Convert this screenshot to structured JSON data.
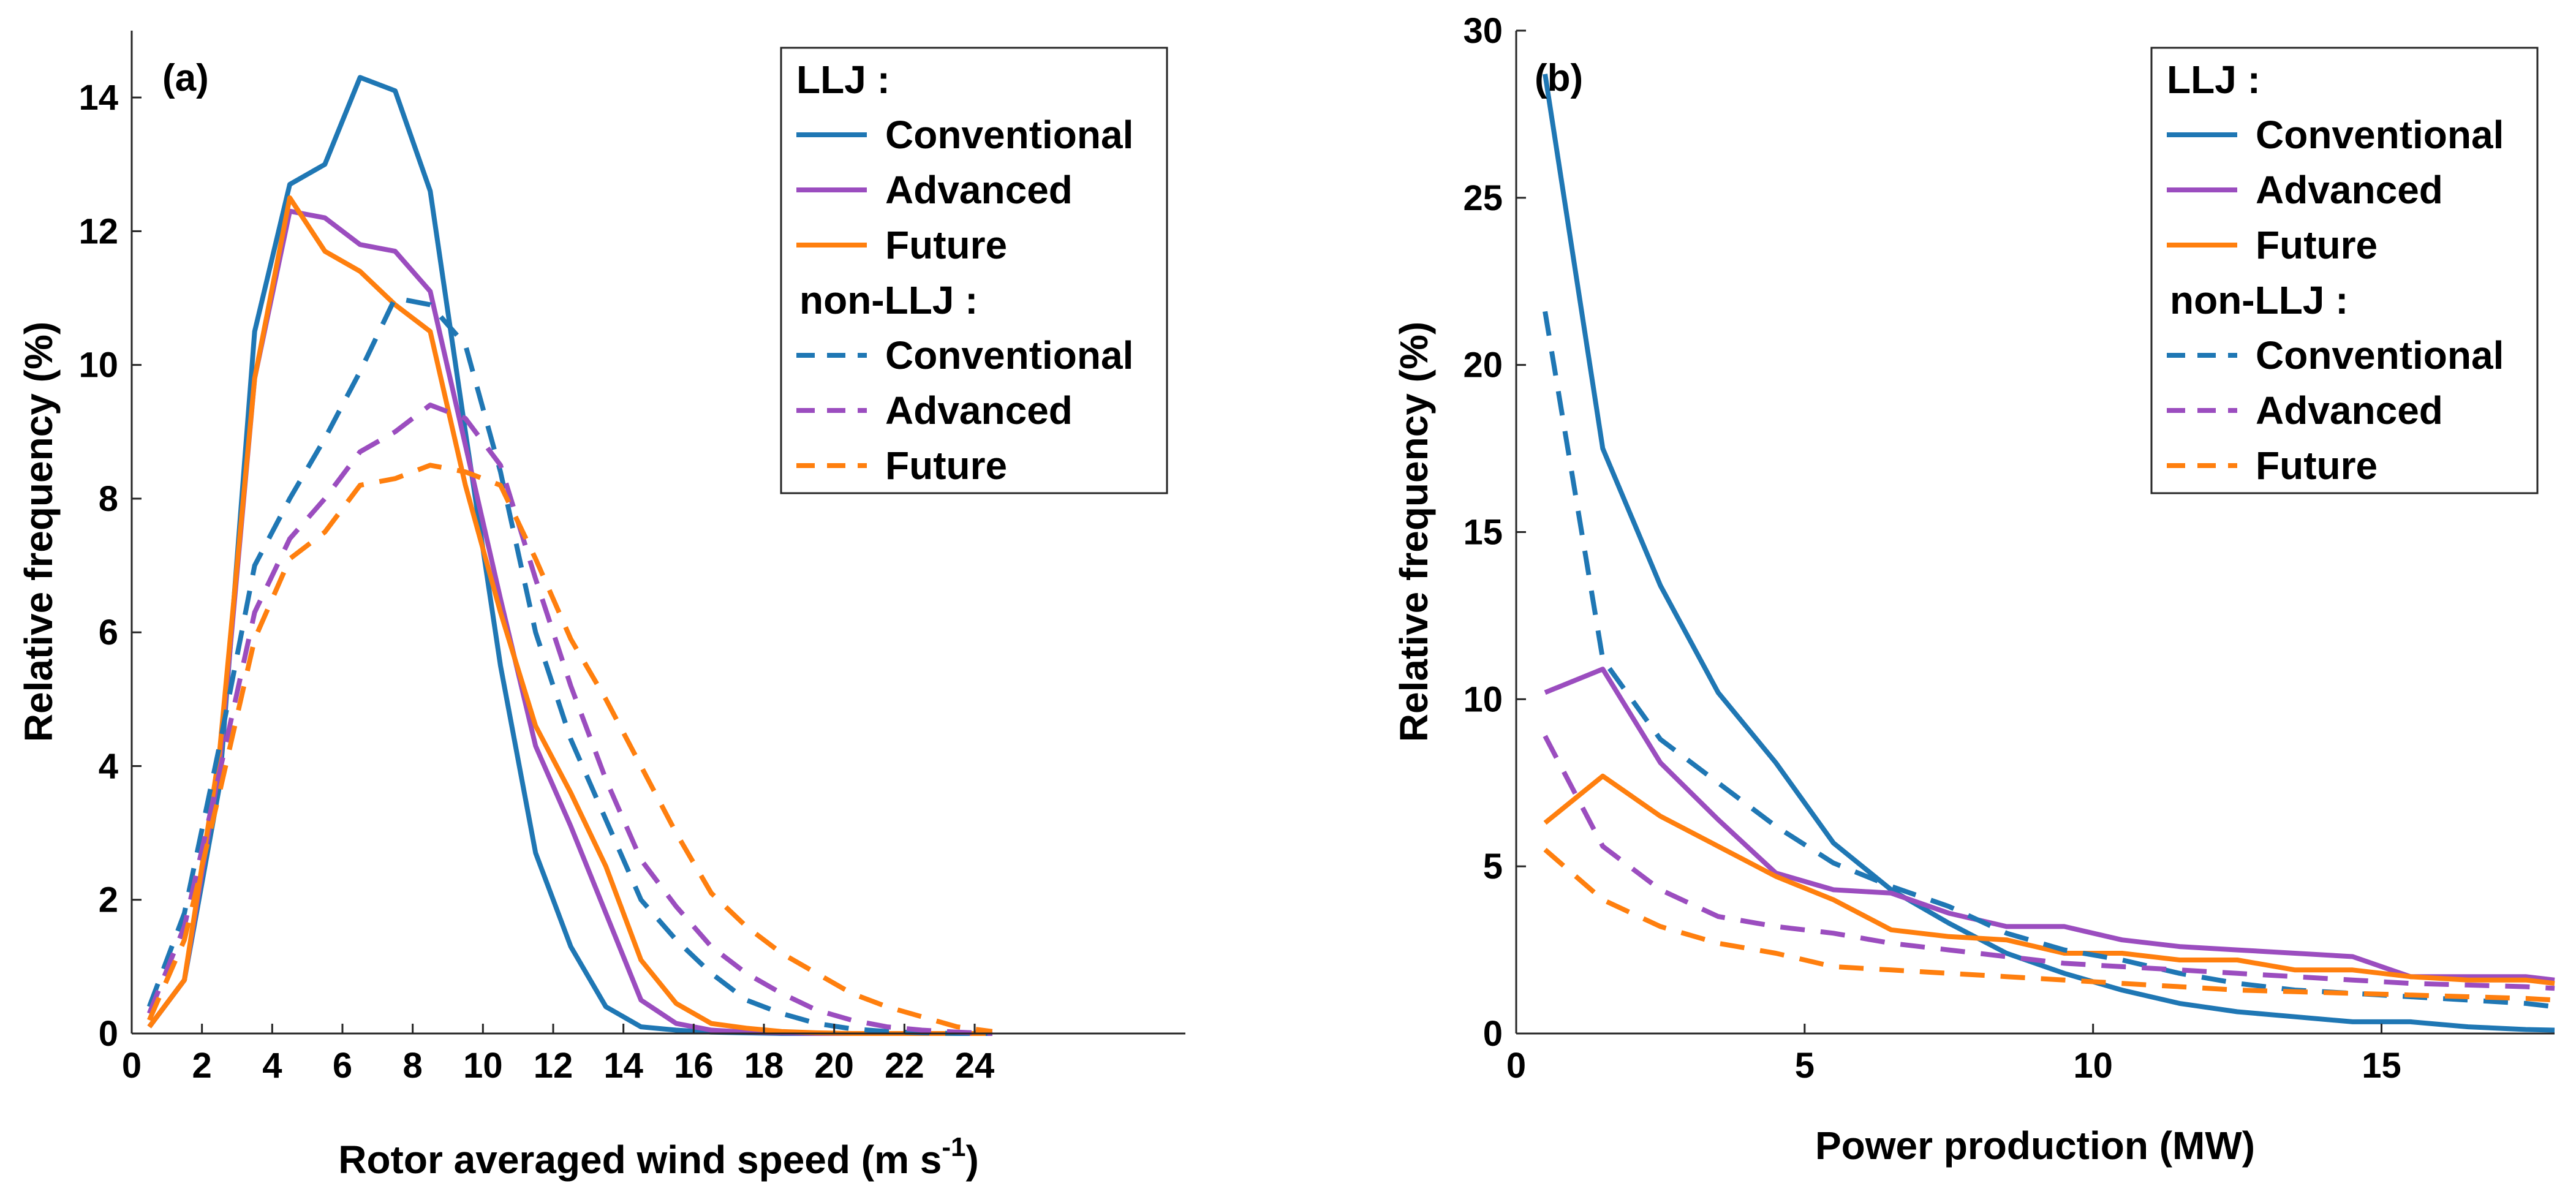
{
  "chart_data": [
    {
      "type": "line",
      "panel_label": "(a)",
      "xlabel": "Rotor averaged wind speed (m s",
      "xlabel_superscript": "-1",
      "xlabel_suffix": ")",
      "ylabel": "Relative frequency (%)",
      "xlim": [
        0,
        30
      ],
      "ylim": [
        0,
        15
      ],
      "xticks": [
        0,
        2,
        4,
        6,
        8,
        10,
        12,
        14,
        16,
        18,
        20,
        22,
        24
      ],
      "xtick_labels": [
        "0",
        "2",
        "4",
        "6",
        "8",
        "10",
        "12",
        "14",
        "16",
        "18",
        "20",
        "22",
        "24"
      ],
      "yticks": [
        0,
        2,
        4,
        6,
        8,
        10,
        12,
        14
      ],
      "ytick_labels": [
        "0",
        "2",
        "4",
        "6",
        "8",
        "10",
        "12",
        "14"
      ],
      "x": [
        0.5,
        1.5,
        2.5,
        3.5,
        4.5,
        5.5,
        6.5,
        7.5,
        8.5,
        9.5,
        10.5,
        11.5,
        12.5,
        13.5,
        14.5,
        15.5,
        16.5,
        17.5,
        18.5,
        19.5,
        20.5,
        21.5,
        22.5,
        23.5,
        24.5
      ],
      "series": [
        {
          "name": "LLJ Conventional",
          "group": "LLJ",
          "scenario": "Conventional",
          "color": "#1f77b4",
          "dash": "solid",
          "values": [
            0.1,
            0.8,
            3.7,
            10.5,
            12.7,
            13.0,
            14.3,
            14.1,
            12.6,
            9.0,
            5.5,
            2.7,
            1.3,
            0.4,
            0.1,
            0.05,
            0.02,
            0.01,
            0.0,
            0.0,
            0.0,
            0.0,
            0.0,
            0.0,
            0.0
          ]
        },
        {
          "name": "LLJ Advanced",
          "group": "LLJ",
          "scenario": "Advanced",
          "color": "#9b4dbf",
          "dash": "solid",
          "values": [
            0.1,
            0.8,
            4.0,
            9.8,
            12.3,
            12.2,
            11.8,
            11.7,
            11.1,
            8.8,
            6.5,
            4.3,
            3.1,
            1.8,
            0.5,
            0.15,
            0.05,
            0.02,
            0.01,
            0.0,
            0.0,
            0.0,
            0.0,
            0.0,
            0.0
          ]
        },
        {
          "name": "LLJ Future",
          "group": "LLJ",
          "scenario": "Future",
          "color": "#ff7f0e",
          "dash": "solid",
          "values": [
            0.1,
            0.8,
            4.2,
            9.8,
            12.5,
            11.7,
            11.4,
            10.9,
            10.5,
            8.2,
            6.3,
            4.6,
            3.6,
            2.5,
            1.1,
            0.45,
            0.15,
            0.08,
            0.03,
            0.01,
            0.0,
            0.0,
            0.0,
            0.0,
            0.0
          ]
        },
        {
          "name": "non-LLJ Conventional",
          "group": "non-LLJ",
          "scenario": "Conventional",
          "color": "#1f77b4",
          "dash": "dashed",
          "values": [
            0.4,
            1.8,
            4.3,
            7.0,
            8.0,
            8.9,
            9.9,
            11.0,
            10.9,
            10.3,
            8.4,
            6.0,
            4.4,
            3.2,
            2.0,
            1.4,
            0.9,
            0.5,
            0.3,
            0.15,
            0.07,
            0.03,
            0.01,
            0.0,
            0.0
          ]
        },
        {
          "name": "non-LLJ Advanced",
          "group": "non-LLJ",
          "scenario": "Advanced",
          "color": "#9b4dbf",
          "dash": "dashed",
          "values": [
            0.3,
            1.6,
            3.9,
            6.3,
            7.4,
            8.0,
            8.7,
            9.0,
            9.4,
            9.2,
            8.5,
            6.8,
            5.2,
            3.8,
            2.6,
            1.9,
            1.3,
            0.9,
            0.6,
            0.35,
            0.2,
            0.1,
            0.05,
            0.02,
            0.0
          ]
        },
        {
          "name": "non-LLJ Future",
          "group": "non-LLJ",
          "scenario": "Future",
          "color": "#ff7f0e",
          "dash": "dashed",
          "values": [
            0.2,
            1.4,
            3.6,
            5.9,
            7.1,
            7.5,
            8.2,
            8.3,
            8.5,
            8.4,
            8.2,
            7.1,
            5.9,
            5.0,
            4.0,
            3.0,
            2.1,
            1.6,
            1.2,
            0.9,
            0.6,
            0.4,
            0.25,
            0.1,
            0.03
          ]
        }
      ],
      "legend": {
        "position": "top-right",
        "llj_title": "LLJ :",
        "nonllj_title": "non-LLJ :",
        "entries": [
          "Conventional",
          "Advanced",
          "Future",
          "Conventional",
          "Advanced",
          "Future"
        ]
      }
    },
    {
      "type": "line",
      "panel_label": "(b)",
      "xlabel": "Power production (MW)",
      "ylabel": "Relative frequency (%)",
      "xlim": [
        0,
        18
      ],
      "ylim": [
        0,
        30
      ],
      "xticks": [
        0,
        5,
        10,
        15
      ],
      "xtick_labels": [
        "0",
        "5",
        "10",
        "15"
      ],
      "yticks": [
        0,
        5,
        10,
        15,
        20,
        25,
        30
      ],
      "ytick_labels": [
        "0",
        "5",
        "10",
        "15",
        "20",
        "25",
        "30"
      ],
      "x": [
        0.5,
        1.5,
        2.5,
        3.5,
        4.5,
        5.5,
        6.5,
        7.5,
        8.5,
        9.5,
        10.5,
        11.5,
        12.5,
        13.5,
        14.5,
        15.5,
        16.5,
        17.5,
        18.0
      ],
      "series": [
        {
          "name": "LLJ Conventional",
          "group": "LLJ",
          "scenario": "Conventional",
          "color": "#1f77b4",
          "dash": "solid",
          "values": [
            28.7,
            17.5,
            13.4,
            10.2,
            8.1,
            5.7,
            4.3,
            3.3,
            2.4,
            1.8,
            1.3,
            0.9,
            0.65,
            0.5,
            0.35,
            0.35,
            0.2,
            0.12,
            0.1
          ]
        },
        {
          "name": "LLJ Advanced",
          "group": "LLJ",
          "scenario": "Advanced",
          "color": "#9b4dbf",
          "dash": "solid",
          "values": [
            10.2,
            10.9,
            8.1,
            6.4,
            4.8,
            4.3,
            4.2,
            3.6,
            3.2,
            3.2,
            2.8,
            2.6,
            2.5,
            2.4,
            2.3,
            1.7,
            1.7,
            1.7,
            1.6
          ]
        },
        {
          "name": "LLJ Future",
          "group": "LLJ",
          "scenario": "Future",
          "color": "#ff7f0e",
          "dash": "solid",
          "values": [
            6.3,
            7.7,
            6.5,
            5.6,
            4.7,
            4.0,
            3.1,
            2.9,
            2.8,
            2.4,
            2.4,
            2.2,
            2.2,
            1.9,
            1.9,
            1.7,
            1.6,
            1.6,
            1.5
          ]
        },
        {
          "name": "non-LLJ Conventional",
          "group": "non-LLJ",
          "scenario": "Conventional",
          "color": "#1f77b4",
          "dash": "dashed",
          "values": [
            21.6,
            11.2,
            8.8,
            7.5,
            6.2,
            5.1,
            4.4,
            3.8,
            3.0,
            2.5,
            2.2,
            1.8,
            1.5,
            1.3,
            1.2,
            1.1,
            1.0,
            0.9,
            0.8
          ]
        },
        {
          "name": "non-LLJ Advanced",
          "group": "non-LLJ",
          "scenario": "Advanced",
          "color": "#9b4dbf",
          "dash": "dashed",
          "values": [
            8.9,
            5.6,
            4.3,
            3.5,
            3.2,
            3.0,
            2.7,
            2.5,
            2.3,
            2.1,
            2.0,
            1.9,
            1.8,
            1.7,
            1.6,
            1.5,
            1.45,
            1.4,
            1.35
          ]
        },
        {
          "name": "non-LLJ Future",
          "group": "non-LLJ",
          "scenario": "Future",
          "color": "#ff7f0e",
          "dash": "dashed",
          "values": [
            5.5,
            4.0,
            3.2,
            2.7,
            2.4,
            2.0,
            1.9,
            1.8,
            1.7,
            1.6,
            1.5,
            1.4,
            1.3,
            1.25,
            1.2,
            1.15,
            1.1,
            1.05,
            1.0
          ]
        }
      ],
      "legend": {
        "position": "top-right",
        "llj_title": "LLJ :",
        "nonllj_title": "non-LLJ :",
        "entries": [
          "Conventional",
          "Advanced",
          "Future",
          "Conventional",
          "Advanced",
          "Future"
        ]
      }
    }
  ]
}
